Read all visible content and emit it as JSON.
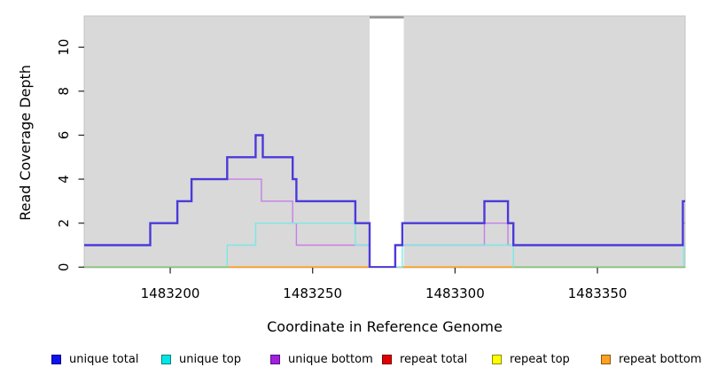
{
  "chart_data": {
    "type": "line",
    "subtype": "step-coverage",
    "title": "",
    "xlabel": "Coordinate in Reference Genome",
    "ylabel": "Read Coverage Depth",
    "xlim": [
      1483169.8,
      1483380.8
    ],
    "ylim": [
      0,
      11.42
    ],
    "x_ticks": [
      1483200,
      1483250,
      1483300,
      1483350
    ],
    "y_ticks": [
      0,
      2,
      4,
      6,
      8,
      10
    ],
    "grid": "off",
    "panel_bg": "#d9d9d9",
    "panel_border": "#c3c3c3",
    "gap_region": {
      "x_start": 1483270,
      "x_end": 1483282,
      "fill": "#ffffff",
      "top_bar_color": "#8f8f8f"
    },
    "series": [
      {
        "name": "unique total",
        "line_color": "#4b3ad9",
        "stroke_width": 2.4,
        "steps": [
          [
            1483169.8,
            1
          ],
          [
            1483193,
            2
          ],
          [
            1483202.5,
            3
          ],
          [
            1483207.5,
            4
          ],
          [
            1483220,
            5
          ],
          [
            1483230,
            6
          ],
          [
            1483232.5,
            5
          ],
          [
            1483243,
            4
          ],
          [
            1483244.3,
            3
          ],
          [
            1483265,
            2
          ],
          [
            1483270,
            0
          ],
          [
            1483279,
            1
          ],
          [
            1483281.5,
            2
          ],
          [
            1483310.3,
            3
          ],
          [
            1483318.6,
            2
          ],
          [
            1483320.5,
            1
          ],
          [
            1483380,
            3
          ]
        ]
      },
      {
        "name": "unique top",
        "line_color": "#7be8e5",
        "stroke_width": 1.4,
        "steps": [
          [
            1483169.8,
            0
          ],
          [
            1483220,
            1
          ],
          [
            1483230,
            2
          ],
          [
            1483265,
            1
          ],
          [
            1483270,
            0
          ],
          [
            1483281.5,
            1
          ],
          [
            1483320.5,
            0
          ],
          [
            1483380.3,
            1
          ]
        ]
      },
      {
        "name": "unique bottom",
        "line_color": "#c77ee6",
        "stroke_width": 1.4,
        "steps": [
          [
            1483169.8,
            1
          ],
          [
            1483193,
            2
          ],
          [
            1483202.5,
            3
          ],
          [
            1483207.5,
            4
          ],
          [
            1483232,
            3
          ],
          [
            1483243,
            2
          ],
          [
            1483244.3,
            1
          ],
          [
            1483270,
            0
          ],
          [
            1483279,
            1
          ],
          [
            1483310.3,
            2
          ],
          [
            1483318.6,
            1
          ],
          [
            1483380,
            2
          ]
        ]
      },
      {
        "name": "repeat total",
        "line_color": "#dd2222",
        "stroke_width": 1.4,
        "steps": [
          [
            1483169.8,
            0
          ]
        ]
      },
      {
        "name": "repeat top",
        "line_color": "#ffee33",
        "stroke_width": 1.4,
        "steps": [
          [
            1483169.8,
            0
          ]
        ]
      },
      {
        "name": "repeat bottom",
        "line_color": "#ff9e1e",
        "stroke_width": 1.8,
        "steps": [
          [
            1483169.8,
            0
          ]
        ]
      }
    ],
    "baseline_overlaps": [
      {
        "x1": 1483169.8,
        "x2": 1483220.5,
        "value": 0,
        "color": "#7cc87c",
        "stroke_width": 1.4
      },
      {
        "x1": 1483320.5,
        "x2": 1483380.8,
        "value": 0,
        "color": "#7cc87c",
        "stroke_width": 1.4
      }
    ],
    "render_order": [
      "repeat total",
      "repeat top",
      "repeat bottom",
      "unique bottom",
      "unique top",
      "__overlaps__",
      "unique total"
    ]
  },
  "legend": {
    "items": [
      {
        "label": "unique total",
        "swatch_color": "#1111ee"
      },
      {
        "label": "unique top",
        "swatch_color": "#00e6e6"
      },
      {
        "label": "unique bottom",
        "swatch_color": "#a21fe0"
      },
      {
        "label": "repeat total",
        "swatch_color": "#e00000"
      },
      {
        "label": "repeat top",
        "swatch_color": "#ffff00"
      },
      {
        "label": "repeat bottom",
        "swatch_color": "#ffa022"
      }
    ]
  }
}
